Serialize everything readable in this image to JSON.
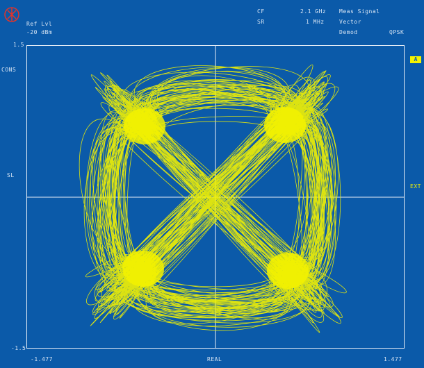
{
  "header": {
    "ref_lvl_label": "Ref Lvl",
    "ref_lvl_value": "-20 dBm",
    "col2_row1": "CF",
    "col2_row2": "SR",
    "col3_row1": "2.1 GHz",
    "col3_row2": "1 MHz",
    "col4_row1": "Meas Signal",
    "col4_row2": "Vector",
    "col4_row3": "Demod",
    "mode": "QPSK"
  },
  "axes": {
    "y_top": "1.5",
    "y_unit": "CONS",
    "y_mid": "SL",
    "y_bottom": "-1.5",
    "x_left": "-1.477",
    "x_center": "REAL",
    "x_right": "1.477",
    "right_marker": "A",
    "right_label": "EXT"
  },
  "colors": {
    "background": "#0b5aa9",
    "trace": "#f3f200",
    "grid": "#e8eef7",
    "logo": "#e0342b"
  },
  "icons": {
    "logo": "rohde-schwarz-logo-icon"
  }
}
